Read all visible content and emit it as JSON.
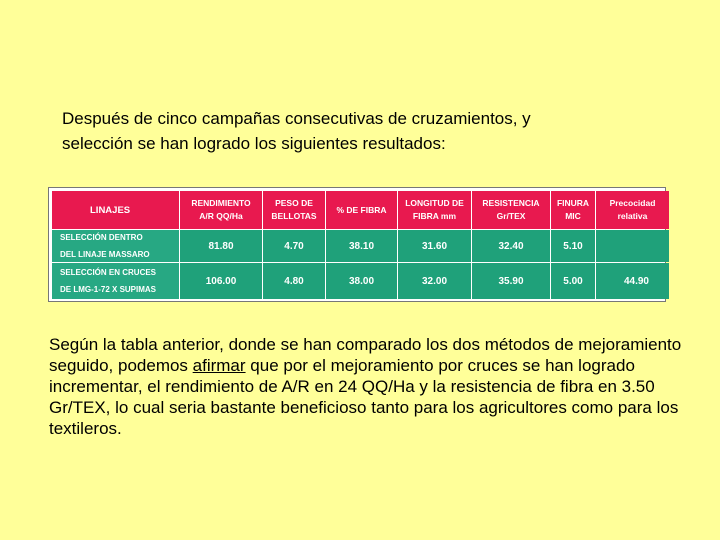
{
  "intro": "Después de cinco campañas consecutivas de cruzamientos, y\nselección se han logrado los siguientes resultados:",
  "table": {
    "headers": [
      "LINAJES",
      "RENDIMIENTO\nA/R QQ/Ha",
      "PESO DE\nBELLOTAS",
      "% DE FIBRA",
      "LONGITUD DE\nFIBRA mm",
      "RESISTENCIA\nGr/TEX",
      "FINURA\nMIC",
      "Precocidad\nrelativa"
    ],
    "rows": [
      {
        "label": "SELECCIÓN DENTRO\nDEL LINAJE MASSARO",
        "values": [
          "81.80",
          "4.70",
          "38.10",
          "31.60",
          "32.40",
          "5.10",
          ""
        ]
      },
      {
        "label": "SELECCIÓN EN CRUCES\nDE LMG-1-72 X SUPIMAS",
        "values": [
          "106.00",
          "4.80",
          "38.00",
          "32.00",
          "35.90",
          "5.00",
          "44.90"
        ]
      }
    ]
  },
  "paragraph": {
    "before": "Según la tabla anterior, donde se han comparado los dos métodos de mejoramiento seguido, podemos ",
    "underlined": "afirmar",
    "after": " que por el mejoramiento por cruces se han logrado incrementar, el rendimiento de A/R en 24 QQ/Ha y la resistencia de fibra en 3.50 Gr/TEX, lo cual seria bastante beneficioso tanto para los agricultores como para los textileros."
  }
}
